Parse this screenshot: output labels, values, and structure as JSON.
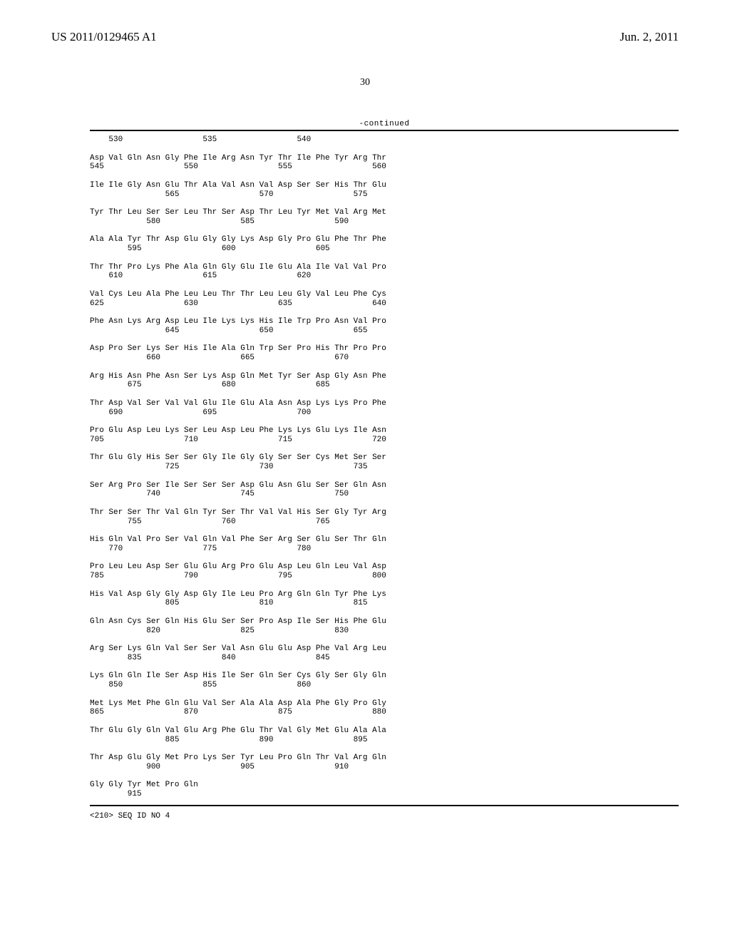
{
  "header": {
    "publication_number": "US 2011/0129465 A1",
    "publication_date": "Jun. 2, 2011"
  },
  "page_number": "30",
  "continued_label": "-continued",
  "seq_footer": "<210> SEQ ID NO 4",
  "sequence": {
    "rows": [
      {
        "residues": "",
        "numbers": "    530                 535                 540"
      },
      {
        "residues": "Asp Val Gln Asn Gly Phe Ile Arg Asn Tyr Thr Ile Phe Tyr Arg Thr",
        "numbers": "545                 550                 555                 560"
      },
      {
        "residues": "Ile Ile Gly Asn Glu Thr Ala Val Asn Val Asp Ser Ser His Thr Glu",
        "numbers": "                565                 570                 575"
      },
      {
        "residues": "Tyr Thr Leu Ser Ser Leu Thr Ser Asp Thr Leu Tyr Met Val Arg Met",
        "numbers": "            580                 585                 590"
      },
      {
        "residues": "Ala Ala Tyr Thr Asp Glu Gly Gly Lys Asp Gly Pro Glu Phe Thr Phe",
        "numbers": "        595                 600                 605"
      },
      {
        "residues": "Thr Thr Pro Lys Phe Ala Gln Gly Glu Ile Glu Ala Ile Val Val Pro",
        "numbers": "    610                 615                 620"
      },
      {
        "residues": "Val Cys Leu Ala Phe Leu Leu Thr Thr Leu Leu Gly Val Leu Phe Cys",
        "numbers": "625                 630                 635                 640"
      },
      {
        "residues": "Phe Asn Lys Arg Asp Leu Ile Lys Lys His Ile Trp Pro Asn Val Pro",
        "numbers": "                645                 650                 655"
      },
      {
        "residues": "Asp Pro Ser Lys Ser His Ile Ala Gln Trp Ser Pro His Thr Pro Pro",
        "numbers": "            660                 665                 670"
      },
      {
        "residues": "Arg His Asn Phe Asn Ser Lys Asp Gln Met Tyr Ser Asp Gly Asn Phe",
        "numbers": "        675                 680                 685"
      },
      {
        "residues": "Thr Asp Val Ser Val Val Glu Ile Glu Ala Asn Asp Lys Lys Pro Phe",
        "numbers": "    690                 695                 700"
      },
      {
        "residues": "Pro Glu Asp Leu Lys Ser Leu Asp Leu Phe Lys Lys Glu Lys Ile Asn",
        "numbers": "705                 710                 715                 720"
      },
      {
        "residues": "Thr Glu Gly His Ser Ser Gly Ile Gly Gly Ser Ser Cys Met Ser Ser",
        "numbers": "                725                 730                 735"
      },
      {
        "residues": "Ser Arg Pro Ser Ile Ser Ser Ser Asp Glu Asn Glu Ser Ser Gln Asn",
        "numbers": "            740                 745                 750"
      },
      {
        "residues": "Thr Ser Ser Thr Val Gln Tyr Ser Thr Val Val His Ser Gly Tyr Arg",
        "numbers": "        755                 760                 765"
      },
      {
        "residues": "His Gln Val Pro Ser Val Gln Val Phe Ser Arg Ser Glu Ser Thr Gln",
        "numbers": "    770                 775                 780"
      },
      {
        "residues": "Pro Leu Leu Asp Ser Glu Glu Arg Pro Glu Asp Leu Gln Leu Val Asp",
        "numbers": "785                 790                 795                 800"
      },
      {
        "residues": "His Val Asp Gly Gly Asp Gly Ile Leu Pro Arg Gln Gln Tyr Phe Lys",
        "numbers": "                805                 810                 815"
      },
      {
        "residues": "Gln Asn Cys Ser Gln His Glu Ser Ser Pro Asp Ile Ser His Phe Glu",
        "numbers": "            820                 825                 830"
      },
      {
        "residues": "Arg Ser Lys Gln Val Ser Ser Val Asn Glu Glu Asp Phe Val Arg Leu",
        "numbers": "        835                 840                 845"
      },
      {
        "residues": "Lys Gln Gln Ile Ser Asp His Ile Ser Gln Ser Cys Gly Ser Gly Gln",
        "numbers": "    850                 855                 860"
      },
      {
        "residues": "Met Lys Met Phe Gln Glu Val Ser Ala Ala Asp Ala Phe Gly Pro Gly",
        "numbers": "865                 870                 875                 880"
      },
      {
        "residues": "Thr Glu Gly Gln Val Glu Arg Phe Glu Thr Val Gly Met Glu Ala Ala",
        "numbers": "                885                 890                 895"
      },
      {
        "residues": "Thr Asp Glu Gly Met Pro Lys Ser Tyr Leu Pro Gln Thr Val Arg Gln",
        "numbers": "            900                 905                 910"
      },
      {
        "residues": "Gly Gly Tyr Met Pro Gln",
        "numbers": "        915"
      }
    ]
  }
}
